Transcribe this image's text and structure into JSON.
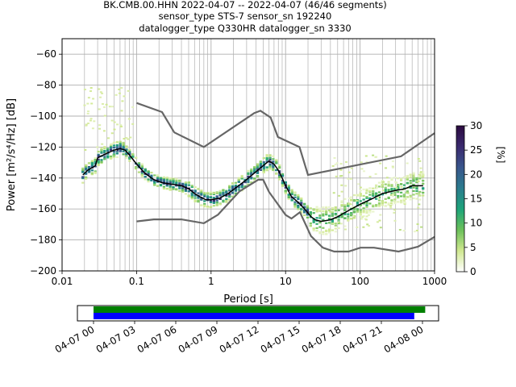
{
  "title": {
    "line1": "BK.CMB.00.HHN   2022-04-07 -- 2022-04-07  (46/46 segments)",
    "line2": "sensor_type STS-7 sensor_sn 192240",
    "line3": "datalogger_type Q330HR datalogger_sn 3330"
  },
  "chart_data": [
    {
      "type": "heatmap",
      "xlabel": "Period [s]",
      "ylabel": "Power [m²/s⁴/Hz] [dB]",
      "xscale": "log",
      "xlim": [
        0.01,
        1000
      ],
      "ylim": [
        -200,
        -50
      ],
      "x_ticks": [
        0.01,
        0.1,
        1,
        10,
        100,
        1000
      ],
      "x_tick_labels": [
        "0.01",
        "0.1",
        "1",
        "10",
        "100",
        "1000"
      ],
      "y_ticks": [
        -200,
        -180,
        -160,
        -140,
        -120,
        -100,
        -80,
        -60
      ],
      "y_tick_labels": [
        "−200",
        "−180",
        "−160",
        "−140",
        "−120",
        "−100",
        "−80",
        "−60"
      ],
      "grid": true,
      "colorbar": {
        "label": "[%]",
        "range": [
          0,
          30
        ],
        "ticks": [
          0,
          5,
          10,
          15,
          20,
          25,
          30
        ],
        "tick_labels": [
          "0",
          "5",
          "10",
          "15",
          "20",
          "25",
          "30"
        ],
        "colors": [
          "#ffffff",
          "#d0e890",
          "#6cc05a",
          "#1da47a",
          "#2b7c8e",
          "#39568c",
          "#3a2a6e",
          "#2b0a3f"
        ]
      },
      "series": [
        {
          "name": "",
          "role": "mode",
          "color": "#000000",
          "points": [
            [
              0.019,
              -138
            ],
            [
              0.022,
              -135
            ],
            [
              0.026,
              -133
            ],
            [
              0.028,
              -132
            ],
            [
              0.03,
              -127
            ],
            [
              0.04,
              -124
            ],
            [
              0.05,
              -122
            ],
            [
              0.06,
              -121
            ],
            [
              0.07,
              -122
            ],
            [
              0.08,
              -125
            ],
            [
              0.1,
              -131
            ],
            [
              0.13,
              -137
            ],
            [
              0.17,
              -141
            ],
            [
              0.22,
              -143
            ],
            [
              0.3,
              -144
            ],
            [
              0.4,
              -145
            ],
            [
              0.5,
              -147
            ],
            [
              0.6,
              -150
            ],
            [
              0.7,
              -152
            ],
            [
              0.85,
              -154
            ],
            [
              1.0,
              -154
            ],
            [
              1.3,
              -153
            ],
            [
              1.7,
              -150
            ],
            [
              2.2,
              -146
            ],
            [
              3.0,
              -141
            ],
            [
              4.0,
              -136
            ],
            [
              5.0,
              -132
            ],
            [
              6.0,
              -129
            ],
            [
              7.0,
              -131
            ],
            [
              8.0,
              -135
            ],
            [
              9.0,
              -140
            ],
            [
              10.0,
              -145
            ],
            [
              12,
              -152
            ],
            [
              15,
              -156
            ],
            [
              18,
              -160
            ],
            [
              22,
              -165
            ],
            [
              25,
              -167
            ],
            [
              30,
              -168
            ],
            [
              40,
              -167
            ],
            [
              50,
              -165
            ],
            [
              70,
              -161
            ],
            [
              100,
              -157
            ],
            [
              150,
              -153
            ],
            [
              200,
              -150
            ],
            [
              300,
              -148
            ],
            [
              400,
              -147
            ],
            [
              500,
              -145
            ],
            [
              700,
              -145
            ]
          ]
        },
        {
          "name": "",
          "role": "noise-model-high",
          "color": "#666666",
          "points": [
            [
              0.1,
              -91.5
            ],
            [
              0.22,
              -97.4
            ],
            [
              0.32,
              -110.5
            ],
            [
              0.8,
              -120
            ],
            [
              3.8,
              -98
            ],
            [
              4.6,
              -96.5
            ],
            [
              6.3,
              -101
            ],
            [
              7.9,
              -113.5
            ],
            [
              15.4,
              -120
            ],
            [
              20,
              -138
            ],
            [
              354.8,
              -126
            ],
            [
              1000,
              -111
            ]
          ]
        },
        {
          "name": "",
          "role": "noise-model-low",
          "color": "#666666",
          "points": [
            [
              0.1,
              -168
            ],
            [
              0.17,
              -166.7
            ],
            [
              0.4,
              -166.7
            ],
            [
              0.8,
              -169.2
            ],
            [
              1.24,
              -163.7
            ],
            [
              2.41,
              -148.6
            ],
            [
              4.3,
              -141.1
            ],
            [
              5.0,
              -141.1
            ],
            [
              6.0,
              -149
            ],
            [
              10.0,
              -163.8
            ],
            [
              12.0,
              -166.2
            ],
            [
              15.6,
              -162.1
            ],
            [
              21.9,
              -177.5
            ],
            [
              31.6,
              -185
            ],
            [
              45,
              -187.5
            ],
            [
              70,
              -187.5
            ],
            [
              101,
              -185
            ],
            [
              154,
              -185
            ],
            [
              328,
              -187.5
            ],
            [
              600,
              -184.4
            ],
            [
              1000,
              -178
            ]
          ]
        }
      ],
      "cloud": [
        {
          "center": -135,
          "spread": 8,
          "periods": [
            0.02,
            0.09
          ]
        },
        {
          "center": -95,
          "spread": 15,
          "periods": [
            0.02,
            0.07
          ]
        },
        {
          "center": -140,
          "spread": 10,
          "periods": [
            80,
            800
          ]
        }
      ]
    },
    {
      "type": "timeline",
      "xlim": [
        "04-07 00",
        "04-08 00"
      ],
      "x_tick_labels": [
        "04-07 00",
        "04-07 03",
        "04-07 06",
        "04-07 09",
        "04-07 12",
        "04-07 15",
        "04-07 18",
        "04-07 21",
        "04-08 00"
      ],
      "segments": [
        {
          "name": "",
          "color": "#008000",
          "start_hour": 0.0,
          "end_hour": 24.2
        },
        {
          "name": "",
          "color": "#0000ff",
          "start_hour": 0.0,
          "end_hour": 23.4
        }
      ]
    }
  ]
}
